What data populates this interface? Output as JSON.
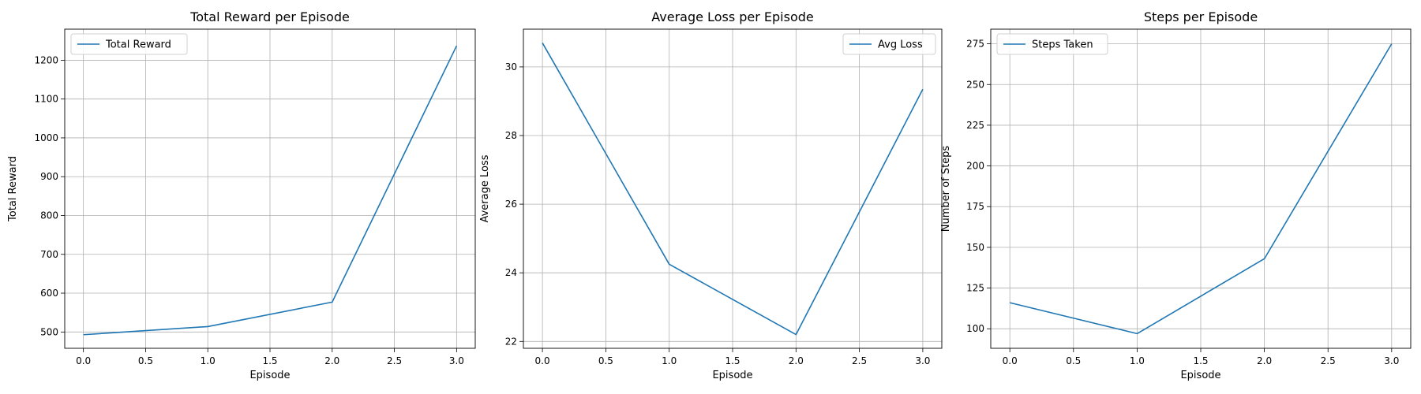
{
  "figure": {
    "line_color": "#1f77b4",
    "grid_color": "#b0b0b0"
  },
  "chart_data": [
    {
      "type": "line",
      "title": "Total Reward per Episode",
      "xlabel": "Episode",
      "ylabel": "Total Reward",
      "x": [
        0,
        1,
        2,
        3
      ],
      "series": [
        {
          "name": "Total Reward",
          "values": [
            493,
            514,
            577,
            1237
          ]
        }
      ],
      "xlim": [
        -0.15,
        3.15
      ],
      "ylim": [
        458,
        1280
      ],
      "xticks": [
        0.0,
        0.5,
        1.0,
        1.5,
        2.0,
        2.5,
        3.0
      ],
      "xtick_labels": [
        "0.0",
        "0.5",
        "1.0",
        "1.5",
        "2.0",
        "2.5",
        "3.0"
      ],
      "yticks": [
        500,
        600,
        700,
        800,
        900,
        1000,
        1100,
        1200
      ],
      "ytick_labels": [
        "500",
        "600",
        "700",
        "800",
        "900",
        "1000",
        "1100",
        "1200"
      ],
      "grid": true,
      "legend": "upper left"
    },
    {
      "type": "line",
      "title": "Average Loss per Episode",
      "xlabel": "Episode",
      "ylabel": "Average Loss",
      "x": [
        0,
        1,
        2,
        3
      ],
      "series": [
        {
          "name": "Avg Loss",
          "values": [
            30.7,
            24.25,
            22.2,
            29.35
          ]
        }
      ],
      "xlim": [
        -0.15,
        3.15
      ],
      "ylim": [
        21.8,
        31.1
      ],
      "xticks": [
        0.0,
        0.5,
        1.0,
        1.5,
        2.0,
        2.5,
        3.0
      ],
      "xtick_labels": [
        "0.0",
        "0.5",
        "1.0",
        "1.5",
        "2.0",
        "2.5",
        "3.0"
      ],
      "yticks": [
        22,
        24,
        26,
        28,
        30
      ],
      "ytick_labels": [
        "22",
        "24",
        "26",
        "28",
        "30"
      ],
      "grid": true,
      "legend": "upper right"
    },
    {
      "type": "line",
      "title": "Steps per Episode",
      "xlabel": "Episode",
      "ylabel": "Number of Steps",
      "x": [
        0,
        1,
        2,
        3
      ],
      "series": [
        {
          "name": "Steps Taken",
          "values": [
            116,
            97,
            143,
            275
          ]
        }
      ],
      "xlim": [
        -0.15,
        3.15
      ],
      "ylim": [
        88,
        284
      ],
      "xticks": [
        0.0,
        0.5,
        1.0,
        1.5,
        2.0,
        2.5,
        3.0
      ],
      "xtick_labels": [
        "0.0",
        "0.5",
        "1.0",
        "1.5",
        "2.0",
        "2.5",
        "3.0"
      ],
      "yticks": [
        100,
        125,
        150,
        175,
        200,
        225,
        250,
        275
      ],
      "ytick_labels": [
        "100",
        "125",
        "150",
        "175",
        "200",
        "225",
        "250",
        "275"
      ],
      "grid": true,
      "legend": "upper left"
    }
  ]
}
